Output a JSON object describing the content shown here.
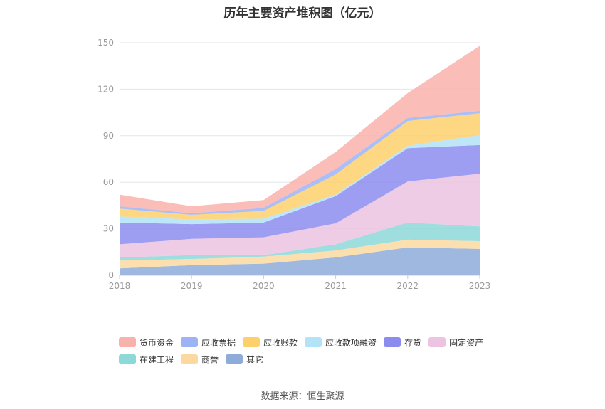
{
  "chart_data": {
    "type": "area",
    "title": "历年主要资产堆积图（亿元）",
    "stacked": true,
    "x": [
      "2018",
      "2019",
      "2020",
      "2021",
      "2022",
      "2023"
    ],
    "ylim": [
      0,
      150
    ],
    "yticks": [
      0,
      30,
      60,
      90,
      120,
      150
    ],
    "grid": true,
    "legend_position": "bottom",
    "series": [
      {
        "name": "其它",
        "color": "#8eabd9",
        "values": [
          4.5,
          6.5,
          7.5,
          11.5,
          18,
          17
        ]
      },
      {
        "name": "商誉",
        "color": "#fcd9a1",
        "values": [
          5,
          4,
          4.5,
          4.5,
          5,
          5
        ]
      },
      {
        "name": "在建工程",
        "color": "#8dd8d8",
        "values": [
          2,
          2.5,
          1,
          4,
          11,
          9.5
        ]
      },
      {
        "name": "固定资产",
        "color": "#ecc3e0",
        "values": [
          8.5,
          10.5,
          11.5,
          13.5,
          26.5,
          34
        ]
      },
      {
        "name": "存货",
        "color": "#8c8cf0",
        "values": [
          14,
          9.5,
          9.5,
          17.5,
          21.5,
          18.5
        ]
      },
      {
        "name": "应收款项融资",
        "color": "#b2e3f7",
        "values": [
          4,
          3,
          2.5,
          1,
          1.5,
          6.5
        ]
      },
      {
        "name": "应收账款",
        "color": "#fdd06b",
        "values": [
          5,
          3,
          5,
          13,
          16,
          14
        ]
      },
      {
        "name": "应收票据",
        "color": "#9db3f5",
        "values": [
          1.5,
          1,
          2,
          3.5,
          2,
          1.5
        ]
      },
      {
        "name": "货币资金",
        "color": "#f9b1ab",
        "values": [
          7.5,
          4.5,
          5,
          11,
          16,
          42
        ]
      }
    ],
    "legend_order": [
      "货币资金",
      "应收票据",
      "应收账款",
      "应收款项融资",
      "存货",
      "固定资产",
      "在建工程",
      "商誉",
      "其它"
    ]
  },
  "source": "数据来源：恒生聚源"
}
